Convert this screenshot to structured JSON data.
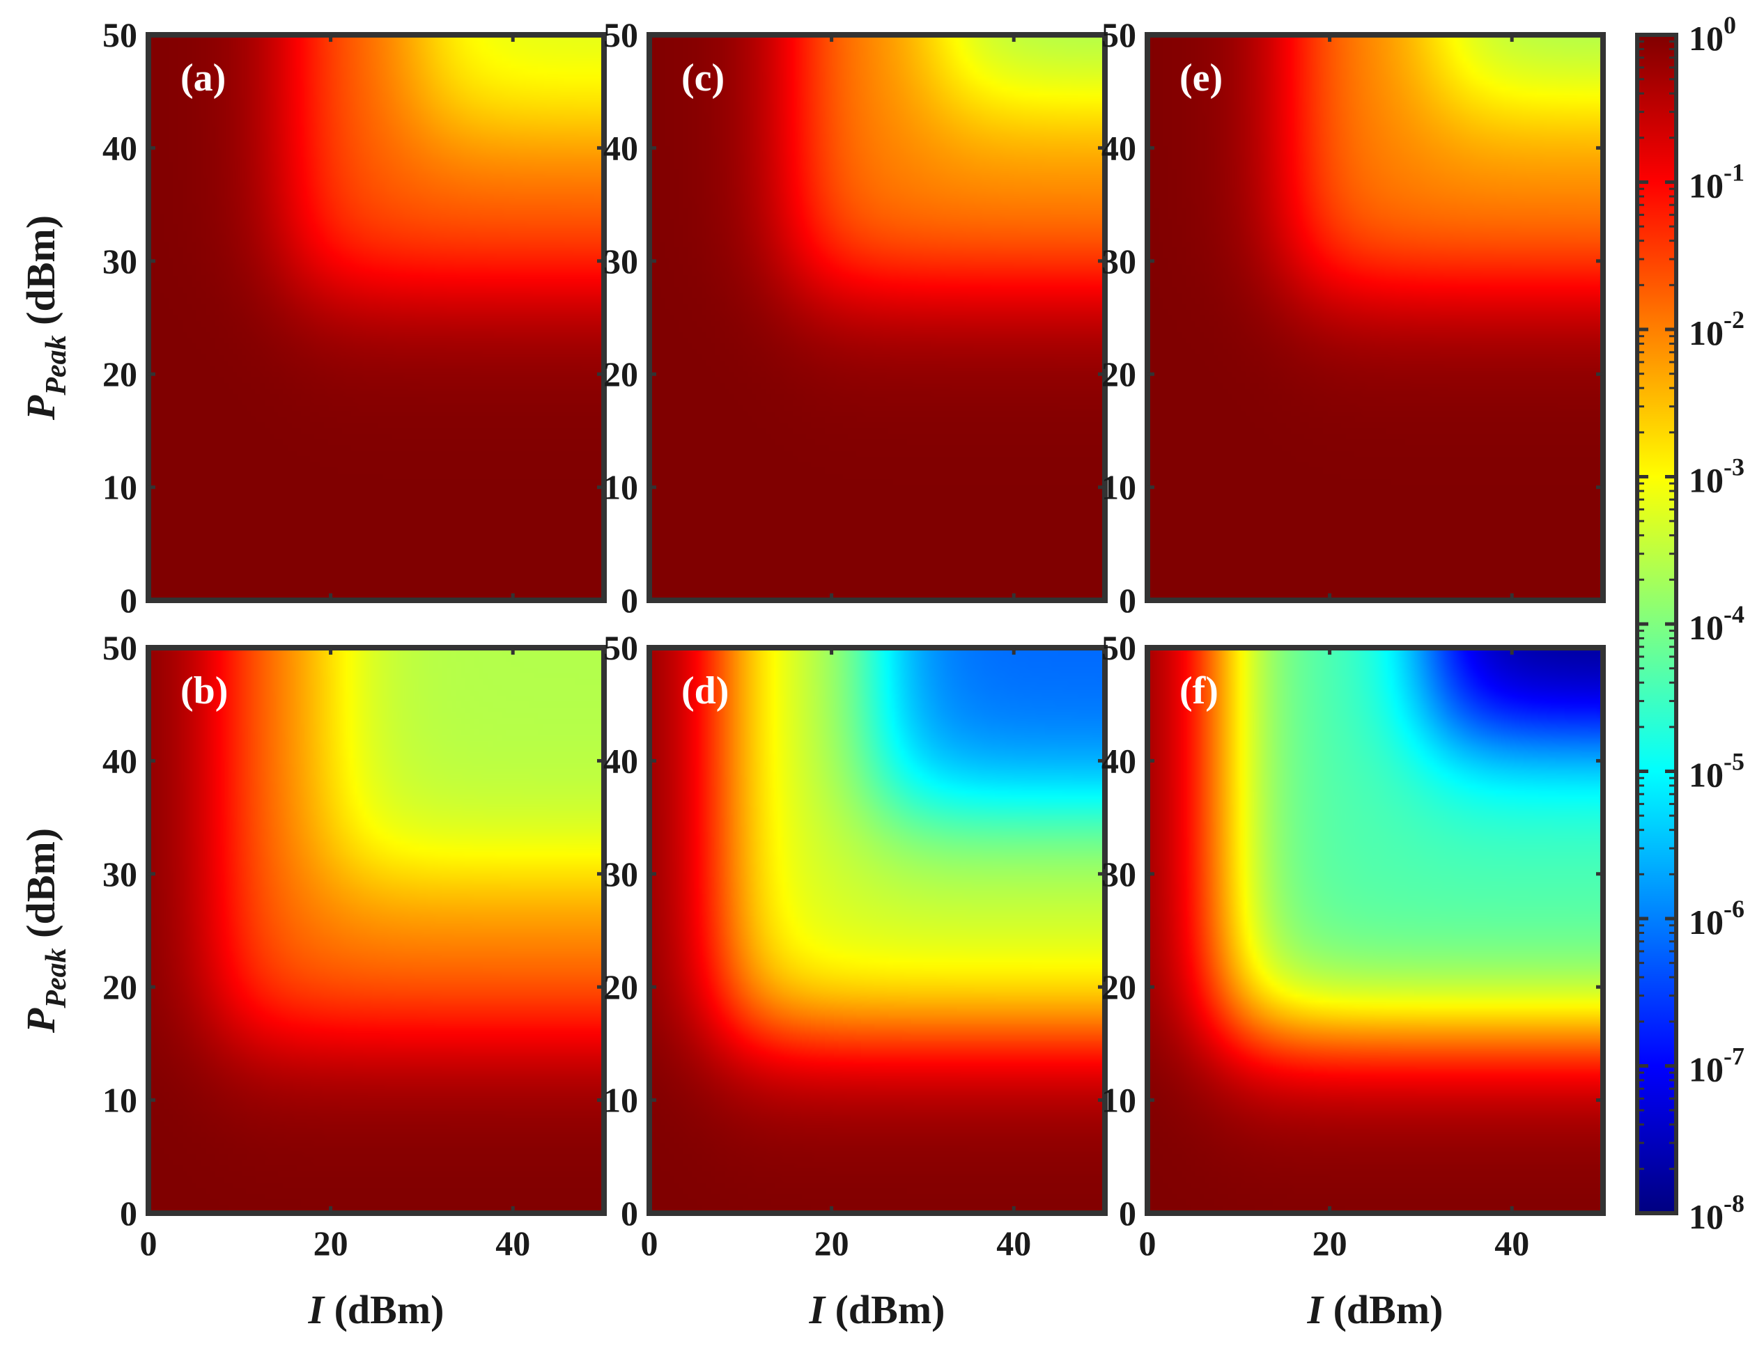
{
  "chart_data": [
    {
      "type": "heatmap",
      "panel_label": "(a)",
      "x_range": [
        0,
        50
      ],
      "y_range": [
        0,
        50
      ],
      "x_ticks": [
        0,
        20,
        40
      ],
      "y_ticks": [
        0,
        10,
        20,
        30,
        40,
        50
      ],
      "field": {
        "knee_x": 16,
        "knee_y": 28,
        "top_x": 30,
        "top_y": 42,
        "min_exp": -3.3
      }
    },
    {
      "type": "heatmap",
      "panel_label": "(b)",
      "x_range": [
        0,
        50
      ],
      "y_range": [
        0,
        50
      ],
      "x_ticks": [
        0,
        20,
        40
      ],
      "y_ticks": [
        0,
        10,
        20,
        30,
        40,
        50
      ],
      "xlabel": "I (dBm)",
      "field": {
        "knee_x": 8,
        "knee_y": 16,
        "top_x": 20,
        "top_y": 30,
        "min_exp": -3.6
      }
    },
    {
      "type": "heatmap",
      "panel_label": "(c)",
      "x_range": [
        0,
        50
      ],
      "y_range": [
        0,
        50
      ],
      "x_ticks": [
        0,
        20,
        40
      ],
      "y_ticks": [
        0,
        10,
        20,
        30,
        40,
        50
      ],
      "field": {
        "knee_x": 16,
        "knee_y": 28,
        "top_x": 32,
        "top_y": 44,
        "min_exp": -3.8
      }
    },
    {
      "type": "heatmap",
      "panel_label": "(d)",
      "x_range": [
        0,
        50
      ],
      "y_range": [
        0,
        50
      ],
      "x_ticks": [
        0,
        20,
        40
      ],
      "y_ticks": [
        0,
        10,
        20,
        30,
        40,
        50
      ],
      "xlabel": "I (dBm)",
      "field": {
        "knee_x": 8,
        "knee_y": 16,
        "top_x": 25,
        "top_y": 36,
        "min_exp": -6.2
      }
    },
    {
      "type": "heatmap",
      "panel_label": "(e)",
      "x_range": [
        0,
        50
      ],
      "y_range": [
        0,
        50
      ],
      "x_ticks": [
        0,
        20,
        40
      ],
      "y_ticks": [
        0,
        10,
        20,
        30,
        40,
        50
      ],
      "field": {
        "knee_x": 16,
        "knee_y": 28,
        "top_x": 32,
        "top_y": 44,
        "min_exp": -3.8
      }
    },
    {
      "type": "heatmap",
      "panel_label": "(f)",
      "x_range": [
        0,
        50
      ],
      "y_range": [
        0,
        50
      ],
      "x_ticks": [
        0,
        20,
        40
      ],
      "y_ticks": [
        0,
        10,
        20,
        30,
        40,
        50
      ],
      "xlabel": "I (dBm)",
      "field": {
        "knee_x": 8,
        "knee_y": 16,
        "top_x": 31,
        "top_y": 42,
        "min_exp": -8
      }
    }
  ],
  "ylabel": {
    "main": "P",
    "subscript": "Peak",
    "unit": "(dBm)"
  },
  "xlabel": {
    "main": "I",
    "unit": "(dBm)"
  },
  "colorbar": {
    "colormap": "jet",
    "scale": "log",
    "range": [
      1e-08,
      1
    ],
    "tick_exponents": [
      0,
      -1,
      -2,
      -3,
      -4,
      -5,
      -6,
      -7,
      -8
    ],
    "base_label": "10"
  }
}
